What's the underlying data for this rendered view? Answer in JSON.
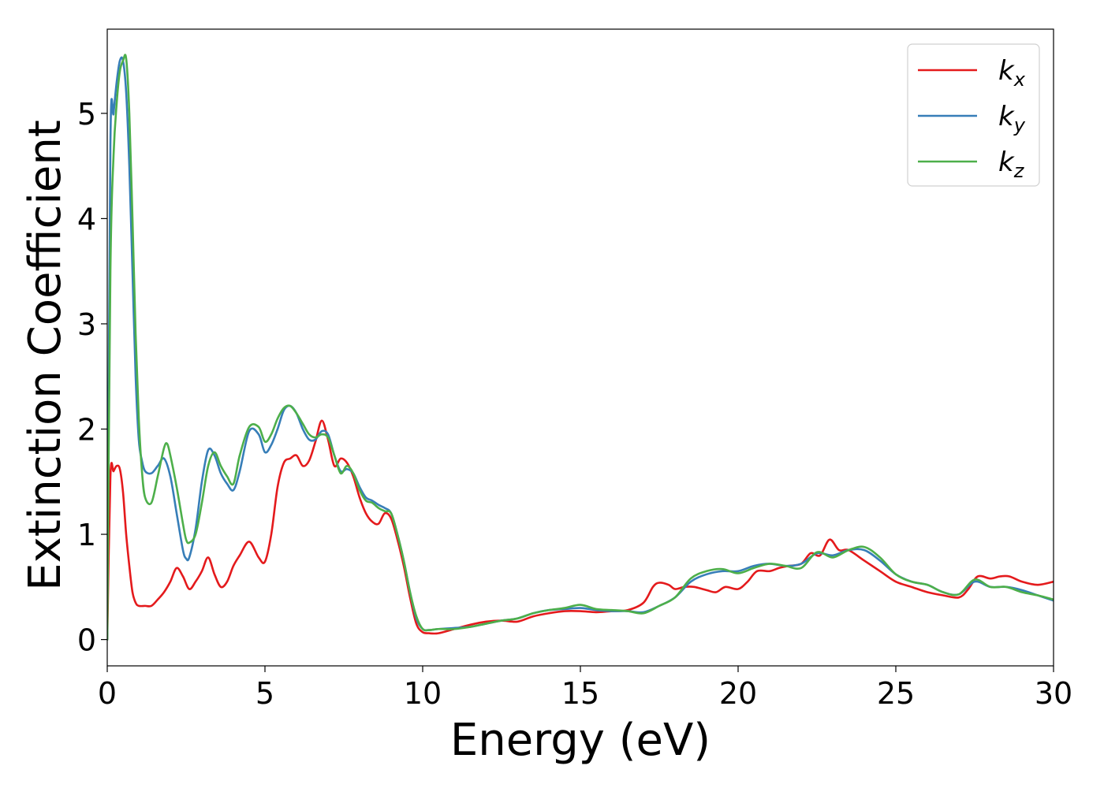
{
  "chart_data": {
    "type": "line",
    "xlabel": "Energy (eV)",
    "ylabel": "Extinction Coefficient",
    "xlim": [
      0,
      30
    ],
    "ylim": [
      -0.25,
      5.8
    ],
    "xticks": [
      0,
      5,
      10,
      15,
      20,
      25,
      30
    ],
    "yticks": [
      0,
      1,
      2,
      3,
      4,
      5
    ],
    "xtick_labels": [
      "0",
      "5",
      "10",
      "15",
      "20",
      "25",
      "30"
    ],
    "ytick_labels": [
      "0",
      "1",
      "2",
      "3",
      "4",
      "5"
    ],
    "grid": false,
    "legend_position": "top-right",
    "series": [
      {
        "name": "k",
        "subscript": "x",
        "color": "#e41a1c",
        "x": [
          0,
          0.1,
          0.2,
          0.3,
          0.4,
          0.5,
          0.6,
          0.7,
          0.8,
          0.9,
          1.0,
          1.2,
          1.4,
          1.6,
          1.8,
          2.0,
          2.2,
          2.4,
          2.6,
          2.8,
          3.0,
          3.2,
          3.4,
          3.6,
          3.8,
          4.0,
          4.2,
          4.5,
          4.8,
          5.0,
          5.2,
          5.4,
          5.6,
          5.8,
          6.0,
          6.2,
          6.4,
          6.6,
          6.8,
          7.0,
          7.2,
          7.4,
          7.6,
          7.8,
          8.0,
          8.2,
          8.4,
          8.6,
          8.8,
          9.0,
          9.2,
          9.4,
          9.6,
          9.8,
          10.0,
          10.2,
          10.5,
          11.0,
          11.5,
          12.0,
          12.5,
          13.0,
          13.5,
          14.0,
          14.5,
          15.0,
          15.5,
          16.0,
          16.5,
          17.0,
          17.3,
          17.5,
          17.8,
          18.0,
          18.3,
          18.6,
          19.0,
          19.3,
          19.6,
          20.0,
          20.3,
          20.6,
          21.0,
          21.3,
          21.6,
          22.0,
          22.3,
          22.6,
          22.9,
          23.2,
          23.5,
          24.0,
          24.5,
          25.0,
          25.5,
          26.0,
          26.5,
          27.0,
          27.3,
          27.6,
          28.0,
          28.3,
          28.6,
          29.0,
          29.5,
          30.0
        ],
        "y": [
          0.0,
          1.55,
          1.6,
          1.65,
          1.62,
          1.4,
          1.0,
          0.7,
          0.45,
          0.35,
          0.32,
          0.32,
          0.32,
          0.38,
          0.45,
          0.55,
          0.68,
          0.6,
          0.48,
          0.55,
          0.65,
          0.78,
          0.62,
          0.5,
          0.55,
          0.7,
          0.8,
          0.93,
          0.78,
          0.74,
          1.0,
          1.45,
          1.68,
          1.72,
          1.75,
          1.65,
          1.7,
          1.88,
          2.08,
          1.9,
          1.65,
          1.72,
          1.68,
          1.55,
          1.35,
          1.2,
          1.12,
          1.1,
          1.2,
          1.15,
          0.95,
          0.7,
          0.4,
          0.15,
          0.07,
          0.06,
          0.06,
          0.1,
          0.14,
          0.17,
          0.18,
          0.17,
          0.22,
          0.25,
          0.27,
          0.27,
          0.26,
          0.27,
          0.28,
          0.35,
          0.5,
          0.54,
          0.52,
          0.48,
          0.5,
          0.5,
          0.47,
          0.45,
          0.5,
          0.48,
          0.55,
          0.65,
          0.65,
          0.68,
          0.7,
          0.72,
          0.82,
          0.8,
          0.95,
          0.85,
          0.85,
          0.75,
          0.65,
          0.55,
          0.5,
          0.45,
          0.42,
          0.4,
          0.48,
          0.6,
          0.58,
          0.6,
          0.6,
          0.55,
          0.52,
          0.55
        ]
      },
      {
        "name": "k",
        "subscript": "y",
        "color": "#377eb8",
        "x": [
          0,
          0.1,
          0.2,
          0.3,
          0.4,
          0.5,
          0.6,
          0.7,
          0.8,
          0.9,
          1.0,
          1.1,
          1.2,
          1.4,
          1.6,
          1.8,
          2.0,
          2.2,
          2.4,
          2.5,
          2.6,
          2.8,
          3.0,
          3.2,
          3.4,
          3.6,
          3.8,
          4.0,
          4.2,
          4.5,
          4.8,
          5.0,
          5.2,
          5.4,
          5.6,
          5.8,
          6.0,
          6.2,
          6.4,
          6.6,
          6.8,
          7.0,
          7.2,
          7.4,
          7.6,
          7.8,
          8.0,
          8.2,
          8.4,
          8.6,
          8.8,
          9.0,
          9.2,
          9.4,
          9.6,
          9.8,
          10.0,
          10.2,
          10.5,
          11.0,
          11.5,
          12.0,
          12.5,
          13.0,
          13.5,
          14.0,
          14.5,
          15.0,
          15.5,
          16.0,
          16.5,
          17.0,
          17.5,
          18.0,
          18.5,
          19.0,
          19.5,
          20.0,
          20.5,
          21.0,
          21.5,
          22.0,
          22.5,
          23.0,
          23.5,
          24.0,
          24.5,
          25.0,
          25.5,
          26.0,
          26.5,
          27.0,
          27.5,
          28.0,
          28.5,
          29.0,
          29.5,
          30.0
        ],
        "y": [
          0.0,
          4.7,
          5.0,
          5.3,
          5.5,
          5.5,
          5.2,
          4.5,
          3.5,
          2.5,
          1.9,
          1.7,
          1.6,
          1.58,
          1.65,
          1.72,
          1.55,
          1.2,
          0.85,
          0.77,
          0.78,
          1.05,
          1.5,
          1.8,
          1.75,
          1.58,
          1.48,
          1.42,
          1.6,
          1.98,
          1.95,
          1.78,
          1.85,
          2.0,
          2.18,
          2.22,
          2.15,
          2.0,
          1.9,
          1.9,
          1.98,
          1.95,
          1.75,
          1.6,
          1.62,
          1.58,
          1.45,
          1.35,
          1.32,
          1.28,
          1.25,
          1.2,
          1.0,
          0.75,
          0.45,
          0.2,
          0.1,
          0.09,
          0.1,
          0.11,
          0.12,
          0.15,
          0.18,
          0.2,
          0.25,
          0.28,
          0.29,
          0.3,
          0.28,
          0.27,
          0.27,
          0.26,
          0.32,
          0.4,
          0.55,
          0.62,
          0.65,
          0.65,
          0.7,
          0.72,
          0.7,
          0.72,
          0.82,
          0.8,
          0.85,
          0.85,
          0.75,
          0.62,
          0.55,
          0.52,
          0.45,
          0.43,
          0.55,
          0.5,
          0.5,
          0.47,
          0.42,
          0.37
        ]
      },
      {
        "name": "k",
        "subscript": "z",
        "color": "#4daf4a",
        "x": [
          0,
          0.1,
          0.2,
          0.3,
          0.4,
          0.5,
          0.6,
          0.7,
          0.8,
          0.9,
          1.0,
          1.1,
          1.2,
          1.4,
          1.6,
          1.8,
          1.9,
          2.0,
          2.2,
          2.4,
          2.5,
          2.6,
          2.8,
          3.0,
          3.2,
          3.4,
          3.6,
          3.8,
          4.0,
          4.2,
          4.5,
          4.8,
          5.0,
          5.2,
          5.4,
          5.6,
          5.8,
          6.0,
          6.2,
          6.4,
          6.6,
          6.8,
          7.0,
          7.2,
          7.4,
          7.6,
          7.8,
          8.0,
          8.2,
          8.4,
          8.6,
          8.8,
          9.0,
          9.2,
          9.4,
          9.6,
          9.8,
          10.0,
          10.2,
          10.5,
          11.0,
          11.5,
          12.0,
          12.5,
          13.0,
          13.5,
          14.0,
          14.5,
          15.0,
          15.5,
          16.0,
          16.5,
          17.0,
          17.5,
          18.0,
          18.5,
          19.0,
          19.5,
          20.0,
          20.5,
          21.0,
          21.5,
          22.0,
          22.5,
          23.0,
          23.5,
          24.0,
          24.5,
          25.0,
          25.5,
          26.0,
          26.5,
          27.0,
          27.5,
          28.0,
          28.5,
          29.0,
          29.5,
          30.0
        ],
        "y": [
          0.0,
          3.5,
          4.6,
          5.1,
          5.4,
          5.5,
          5.52,
          5.0,
          4.0,
          2.9,
          2.1,
          1.6,
          1.35,
          1.3,
          1.55,
          1.82,
          1.86,
          1.75,
          1.45,
          1.1,
          0.95,
          0.92,
          1.0,
          1.3,
          1.65,
          1.78,
          1.65,
          1.55,
          1.48,
          1.75,
          2.02,
          2.02,
          1.88,
          1.95,
          2.1,
          2.2,
          2.22,
          2.15,
          2.05,
          1.95,
          1.92,
          1.95,
          1.92,
          1.75,
          1.58,
          1.65,
          1.58,
          1.42,
          1.32,
          1.3,
          1.25,
          1.22,
          1.2,
          1.0,
          0.75,
          0.45,
          0.22,
          0.1,
          0.09,
          0.1,
          0.1,
          0.12,
          0.15,
          0.18,
          0.2,
          0.25,
          0.28,
          0.3,
          0.33,
          0.29,
          0.28,
          0.27,
          0.25,
          0.32,
          0.4,
          0.58,
          0.65,
          0.67,
          0.63,
          0.68,
          0.72,
          0.7,
          0.68,
          0.83,
          0.78,
          0.85,
          0.88,
          0.78,
          0.62,
          0.55,
          0.52,
          0.45,
          0.43,
          0.57,
          0.5,
          0.5,
          0.45,
          0.42,
          0.38
        ]
      }
    ]
  }
}
